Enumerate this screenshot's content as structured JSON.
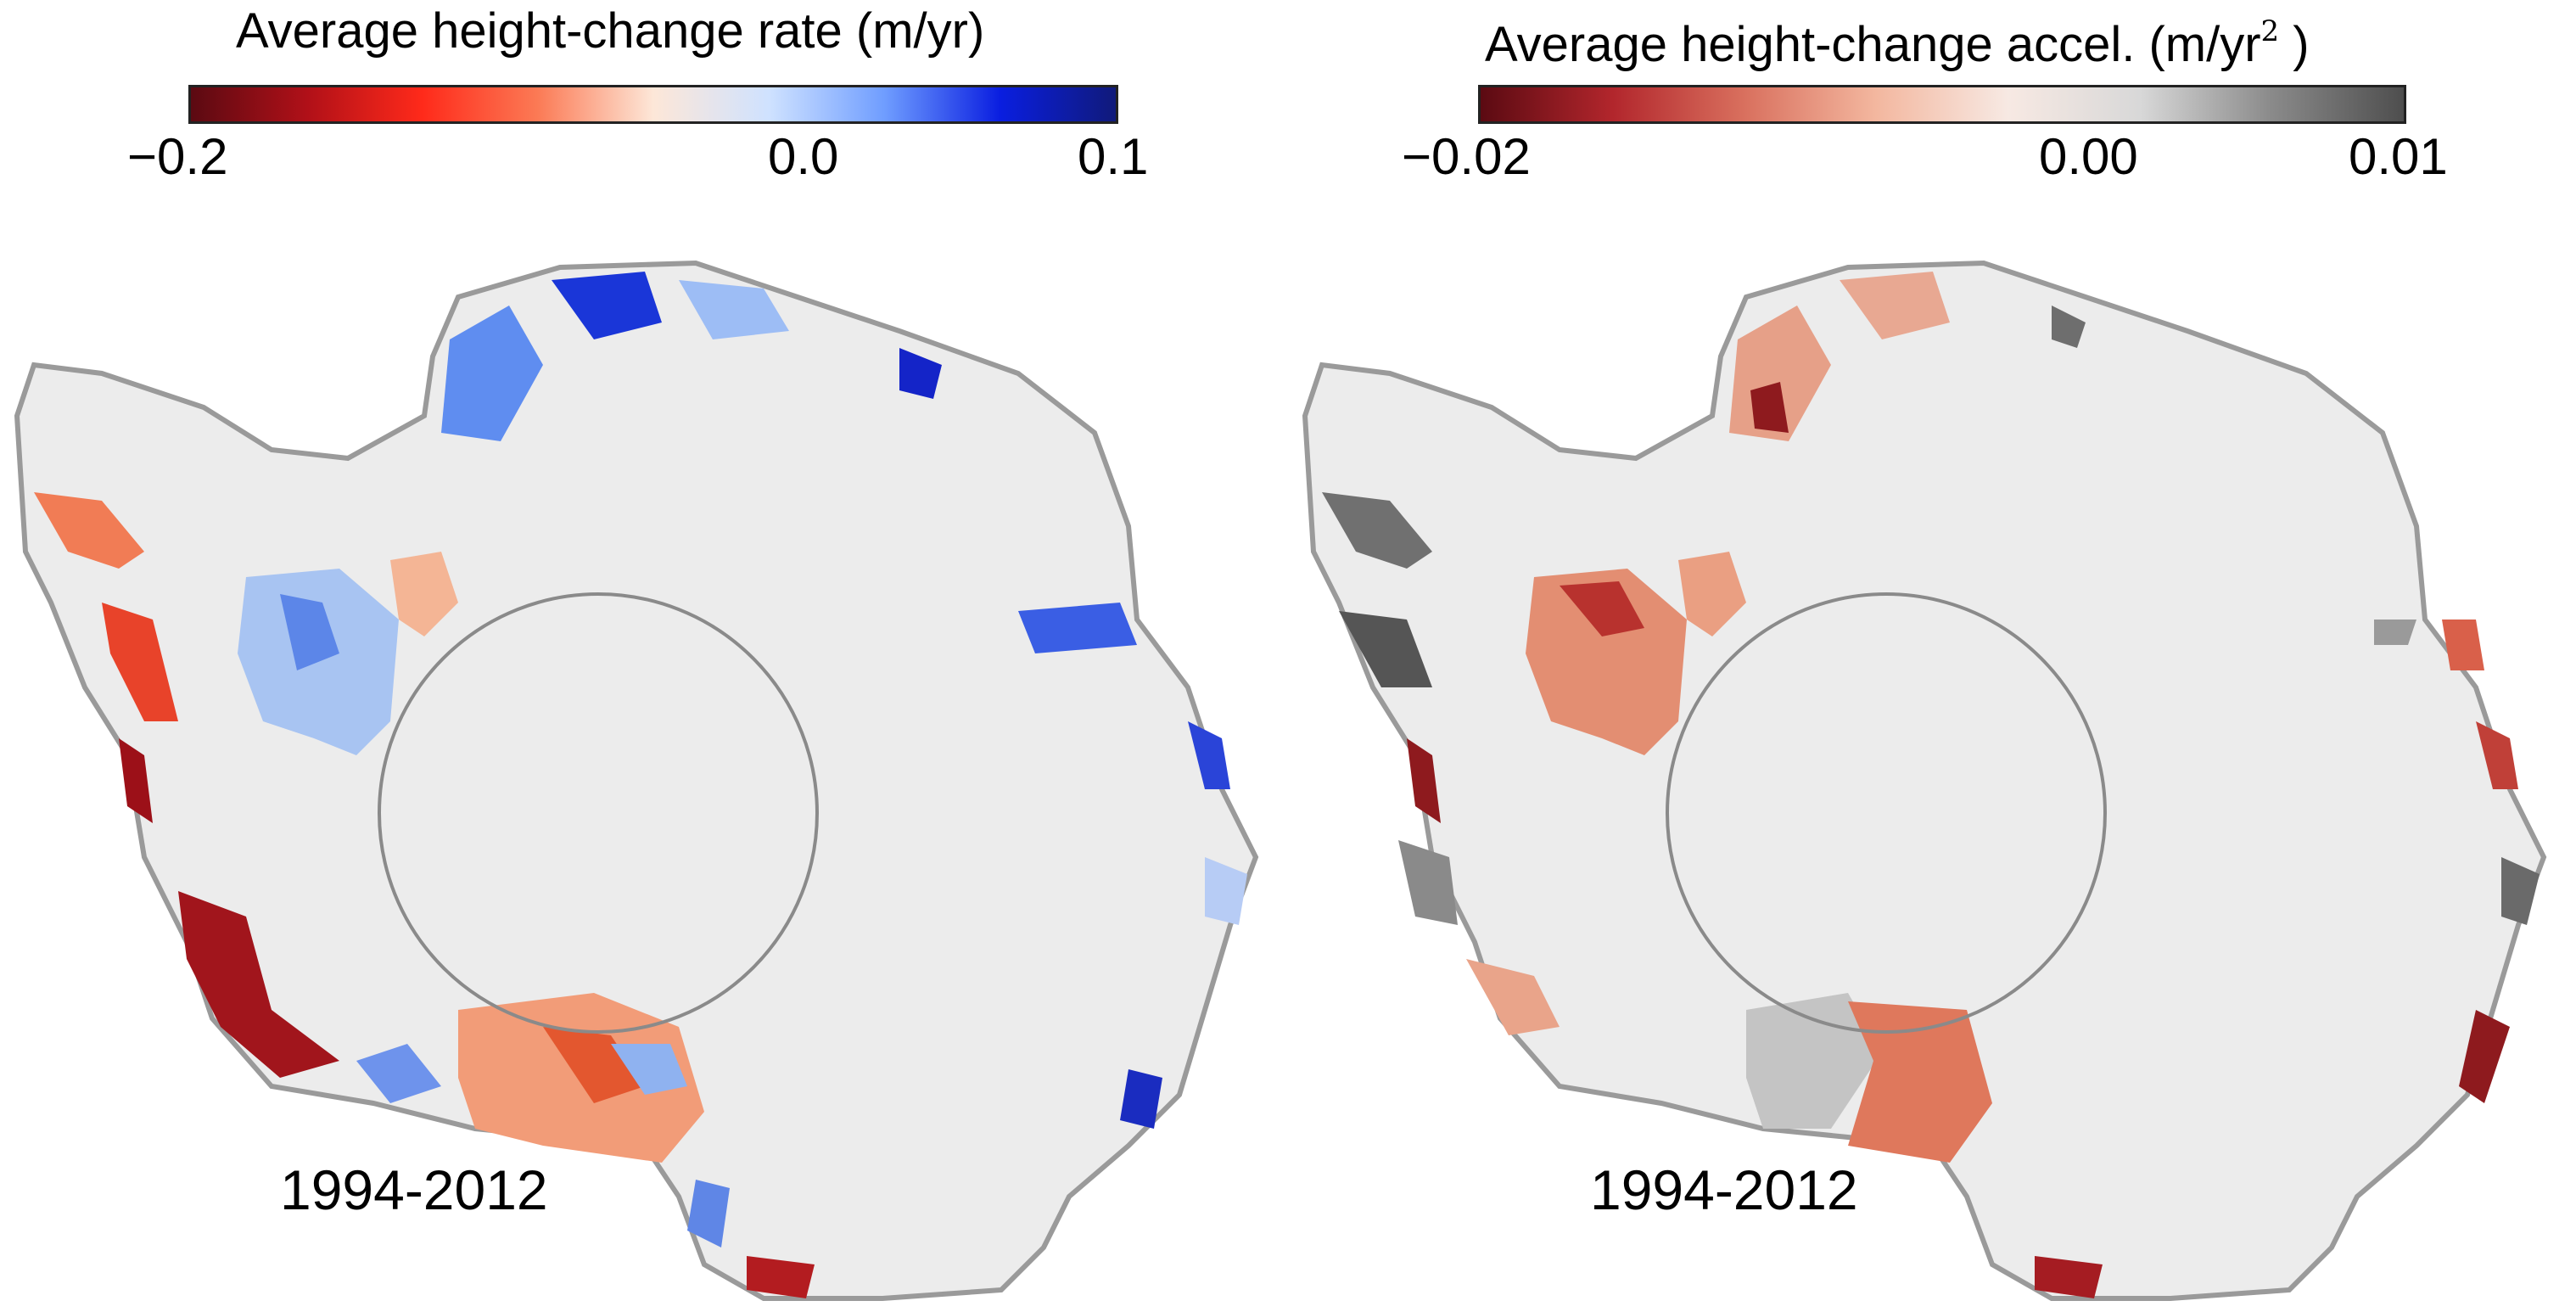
{
  "panels": [
    {
      "title": "Average height-change rate (m/yr)",
      "colorbar": {
        "ticks": [
          "−0.2",
          "0.0",
          "0.1"
        ],
        "stops": [
          "#5b0a12",
          "#b01018",
          "#ff2a1a",
          "#fb7a55",
          "#fde7d8",
          "#cfe2ff",
          "#6f9dff",
          "#0a1ee0",
          "#101a7a"
        ]
      },
      "period": "1994-2012"
    },
    {
      "title": "Average height-change accel. (m/yr",
      "title_sup": "2",
      "title_end": " )",
      "colorbar": {
        "ticks": [
          "−0.02",
          "0.00",
          "0.01"
        ],
        "stops": [
          "#5b0a12",
          "#b2262c",
          "#d9705e",
          "#f3b79f",
          "#f7e9e3",
          "#d8d8d8",
          "#8a8a8a",
          "#4e4e4e"
        ]
      },
      "period": "1994-2012"
    }
  ]
}
